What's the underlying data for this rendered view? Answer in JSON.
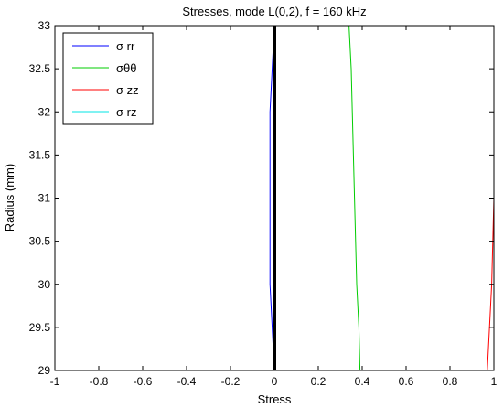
{
  "chart_data": {
    "type": "line",
    "title": "Stresses, mode L(0,2), f = 160 kHz",
    "xlabel": "Stress",
    "ylabel": "Radius (mm)",
    "xlim": [
      -1,
      1
    ],
    "ylim": [
      29,
      33
    ],
    "xticks": [
      "-1",
      "-0.8",
      "-0.6",
      "-0.4",
      "-0.2",
      "0",
      "0.2",
      "0.4",
      "0.6",
      "0.8",
      "1"
    ],
    "yticks": [
      "29",
      "29.5",
      "30",
      "30.5",
      "31",
      "31.5",
      "32",
      "32.5",
      "33"
    ],
    "legend_position": "top-left",
    "grid": false,
    "series": [
      {
        "name": "σ rr",
        "color": "#0000ff",
        "points": [
          [
            0.0,
            29.0
          ],
          [
            -0.01,
            29.5
          ],
          [
            -0.02,
            30.0
          ],
          [
            -0.02,
            30.5
          ],
          [
            -0.02,
            31.0
          ],
          [
            -0.02,
            31.5
          ],
          [
            -0.02,
            32.0
          ],
          [
            -0.01,
            32.5
          ],
          [
            0.0,
            33.0
          ]
        ]
      },
      {
        "name": "σθθ",
        "color": "#00cc00",
        "points": [
          [
            0.39,
            29.0
          ],
          [
            0.385,
            29.5
          ],
          [
            0.375,
            30.0
          ],
          [
            0.37,
            30.5
          ],
          [
            0.365,
            31.0
          ],
          [
            0.36,
            31.5
          ],
          [
            0.355,
            32.0
          ],
          [
            0.35,
            32.5
          ],
          [
            0.34,
            33.0
          ]
        ]
      },
      {
        "name": "σ zz",
        "color": "#ff0000",
        "points": [
          [
            0.97,
            29.0
          ],
          [
            0.98,
            29.5
          ],
          [
            0.99,
            30.0
          ],
          [
            0.995,
            30.5
          ],
          [
            1.0,
            31.0
          ],
          [
            1.0,
            31.5
          ],
          [
            1.0,
            32.0
          ],
          [
            1.0,
            32.5
          ],
          [
            1.0,
            33.0
          ]
        ]
      },
      {
        "name": "σ rz",
        "color": "#00e5e5",
        "points": [
          [
            0.0,
            29.0
          ],
          [
            0.0,
            29.5
          ],
          [
            0.0,
            30.0
          ],
          [
            0.0,
            30.5
          ],
          [
            0.0,
            31.0
          ],
          [
            0.0,
            31.5
          ],
          [
            0.0,
            32.0
          ],
          [
            0.0,
            32.5
          ],
          [
            0.0,
            33.0
          ]
        ]
      }
    ],
    "reference_line": {
      "x": 0,
      "color": "#000000"
    }
  }
}
